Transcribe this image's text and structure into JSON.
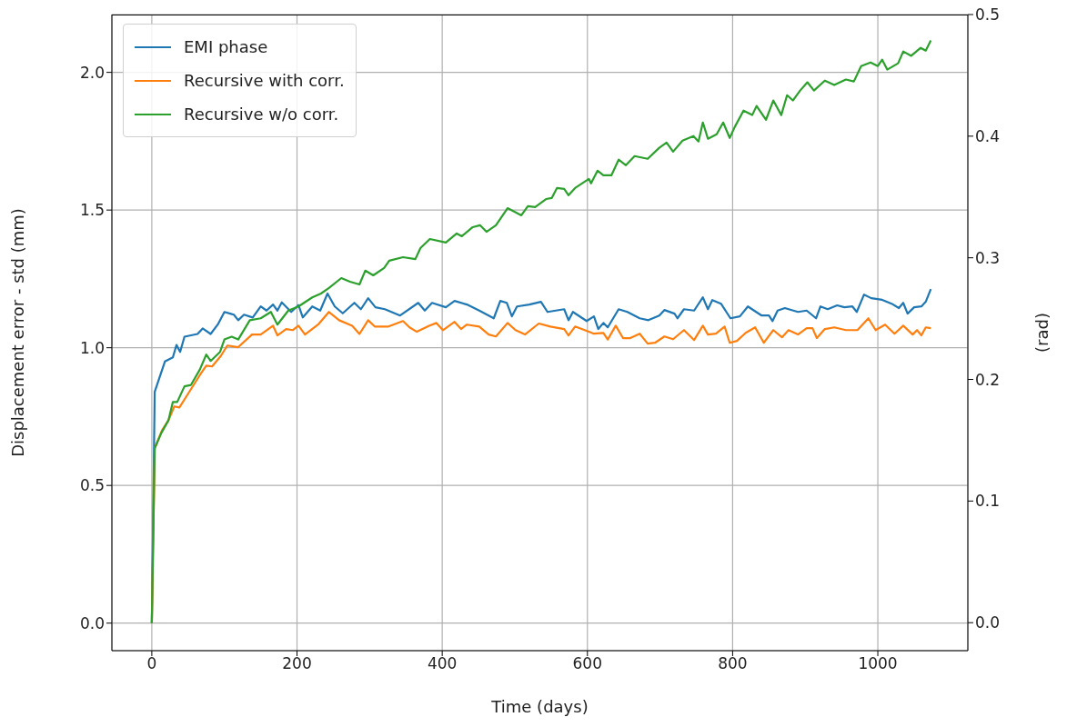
{
  "chart_data": {
    "type": "line",
    "xlabel": "Time (days)",
    "ylabel": "Displacement error - std (mm)",
    "y2label": "(rad)",
    "xlim": [
      -55,
      1124
    ],
    "xticks": [
      0,
      200,
      400,
      600,
      800,
      1000
    ],
    "ylim": [
      -0.1,
      2.21
    ],
    "yticks": [
      {
        "value": 0,
        "label": "0.0"
      },
      0.5,
      {
        "value": 1,
        "label": "1.0"
      },
      1.5,
      {
        "value": 2,
        "label": "2.0"
      }
    ],
    "y2lim": [
      -0.023,
      0.5
    ],
    "y2ticks": [
      {
        "value": 0,
        "label": "0.0"
      },
      0.1,
      0.2,
      0.3,
      0.4,
      0.5
    ],
    "grid": true,
    "legend": "top left",
    "marker": "none",
    "line_style": "solid",
    "series": [
      {
        "name": "EMI phase",
        "color": "#1f77b4",
        "x": [
          0,
          4,
          18,
          29,
          34,
          39,
          45,
          63,
          70,
          81,
          91,
          100,
          113,
          119,
          127,
          139,
          150,
          158,
          167,
          173,
          179,
          192,
          202,
          208,
          221,
          232,
          242,
          252,
          263,
          279,
          288,
          298,
          308,
          321,
          342,
          367,
          376,
          386,
          405,
          417,
          434,
          451,
          471,
          480,
          489,
          496,
          503,
          520,
          536,
          545,
          568,
          574,
          580,
          599,
          609,
          615,
          622,
          628,
          643,
          655,
          672,
          684,
          699,
          706,
          720,
          724,
          733,
          747,
          759,
          766,
          772,
          784,
          797,
          810,
          821,
          840,
          850,
          855,
          862,
          872,
          890,
          902,
          915,
          921,
          931,
          944,
          954,
          965,
          971,
          981,
          991,
          1006,
          1019,
          1029,
          1035,
          1041,
          1050,
          1060,
          1066,
          1073
        ],
        "values": [
          0,
          0.84,
          0.95,
          0.965,
          1.01,
          0.985,
          1.04,
          1.05,
          1.07,
          1.05,
          1.085,
          1.13,
          1.12,
          1.1,
          1.12,
          1.11,
          1.15,
          1.135,
          1.157,
          1.135,
          1.165,
          1.13,
          1.155,
          1.11,
          1.15,
          1.135,
          1.197,
          1.15,
          1.125,
          1.163,
          1.14,
          1.18,
          1.147,
          1.14,
          1.117,
          1.163,
          1.135,
          1.163,
          1.147,
          1.17,
          1.157,
          1.135,
          1.107,
          1.17,
          1.163,
          1.114,
          1.15,
          1.157,
          1.167,
          1.13,
          1.14,
          1.1,
          1.13,
          1.097,
          1.114,
          1.068,
          1.09,
          1.074,
          1.14,
          1.13,
          1.107,
          1.1,
          1.117,
          1.137,
          1.124,
          1.107,
          1.14,
          1.135,
          1.183,
          1.14,
          1.173,
          1.16,
          1.107,
          1.114,
          1.15,
          1.117,
          1.117,
          1.097,
          1.135,
          1.144,
          1.13,
          1.135,
          1.107,
          1.15,
          1.14,
          1.154,
          1.147,
          1.15,
          1.13,
          1.193,
          1.18,
          1.174,
          1.16,
          1.144,
          1.163,
          1.124,
          1.147,
          1.15,
          1.167,
          1.213
        ]
      },
      {
        "name": "Recursive with corr.",
        "color": "#ff7f0e",
        "x": [
          0,
          4,
          14,
          23,
          31,
          38,
          50,
          66,
          75,
          83,
          95,
          104,
          119,
          138,
          150,
          167,
          173,
          185,
          194,
          202,
          211,
          229,
          244,
          258,
          276,
          286,
          298,
          307,
          326,
          346,
          355,
          365,
          382,
          392,
          401,
          417,
          426,
          434,
          451,
          464,
          474,
          490,
          501,
          514,
          533,
          549,
          568,
          574,
          583,
          602,
          609,
          622,
          628,
          639,
          649,
          659,
          672,
          683,
          693,
          706,
          718,
          733,
          747,
          759,
          766,
          777,
          789,
          796,
          806,
          818,
          831,
          843,
          856,
          868,
          877,
          890,
          902,
          910,
          916,
          927,
          940,
          956,
          972,
          987,
          997,
          1010,
          1023,
          1035,
          1048,
          1054,
          1060,
          1066,
          1073
        ],
        "values": [
          0,
          0.635,
          0.7,
          0.737,
          0.787,
          0.783,
          0.833,
          0.9,
          0.935,
          0.932,
          0.97,
          1.008,
          1.002,
          1.048,
          1.048,
          1.08,
          1.045,
          1.068,
          1.064,
          1.08,
          1.048,
          1.084,
          1.13,
          1.1,
          1.08,
          1.05,
          1.1,
          1.077,
          1.077,
          1.097,
          1.074,
          1.058,
          1.08,
          1.09,
          1.064,
          1.094,
          1.068,
          1.084,
          1.077,
          1.048,
          1.041,
          1.09,
          1.064,
          1.048,
          1.088,
          1.077,
          1.068,
          1.045,
          1.077,
          1.058,
          1.051,
          1.054,
          1.03,
          1.08,
          1.035,
          1.035,
          1.051,
          1.015,
          1.018,
          1.041,
          1.031,
          1.064,
          1.028,
          1.08,
          1.048,
          1.051,
          1.077,
          1.018,
          1.025,
          1.054,
          1.074,
          1.018,
          1.064,
          1.038,
          1.064,
          1.048,
          1.071,
          1.071,
          1.035,
          1.068,
          1.074,
          1.064,
          1.064,
          1.107,
          1.064,
          1.084,
          1.051,
          1.08,
          1.048,
          1.064,
          1.045,
          1.074,
          1.071
        ]
      },
      {
        "name": "Recursive w/o corr.",
        "color": "#2ca02c",
        "x": [
          0,
          4,
          13,
          23,
          29,
          35,
          45,
          54,
          66,
          75,
          81,
          94,
          100,
          110,
          119,
          135,
          150,
          164,
          173,
          188,
          202,
          221,
          233,
          244,
          261,
          273,
          286,
          294,
          305,
          320,
          327,
          346,
          363,
          370,
          383,
          405,
          420,
          427,
          442,
          452,
          461,
          474,
          490,
          509,
          518,
          528,
          543,
          551,
          558,
          568,
          574,
          583,
          602,
          605,
          614,
          622,
          633,
          643,
          653,
          665,
          683,
          699,
          709,
          718,
          731,
          746,
          753,
          759,
          766,
          778,
          787,
          796,
          803,
          815,
          827,
          833,
          846,
          856,
          867,
          875,
          883,
          893,
          903,
          912,
          927,
          940,
          956,
          967,
          977,
          990,
          1000,
          1006,
          1013,
          1028,
          1035,
          1046,
          1059,
          1066,
          1073
        ],
        "values": [
          0,
          0.635,
          0.69,
          0.737,
          0.803,
          0.803,
          0.86,
          0.865,
          0.92,
          0.975,
          0.952,
          0.985,
          1.03,
          1.04,
          1.03,
          1.1,
          1.107,
          1.13,
          1.084,
          1.135,
          1.15,
          1.183,
          1.197,
          1.217,
          1.253,
          1.24,
          1.23,
          1.28,
          1.263,
          1.29,
          1.316,
          1.329,
          1.322,
          1.362,
          1.395,
          1.382,
          1.415,
          1.405,
          1.438,
          1.445,
          1.421,
          1.445,
          1.507,
          1.481,
          1.514,
          1.511,
          1.54,
          1.544,
          1.58,
          1.577,
          1.554,
          1.58,
          1.613,
          1.597,
          1.643,
          1.626,
          1.626,
          1.683,
          1.663,
          1.696,
          1.686,
          1.726,
          1.745,
          1.712,
          1.752,
          1.769,
          1.749,
          1.818,
          1.759,
          1.775,
          1.818,
          1.762,
          1.802,
          1.861,
          1.845,
          1.878,
          1.828,
          1.898,
          1.845,
          1.917,
          1.898,
          1.934,
          1.964,
          1.934,
          1.97,
          1.954,
          1.974,
          1.967,
          2.023,
          2.036,
          2.023,
          2.046,
          2.01,
          2.033,
          2.076,
          2.06,
          2.089,
          2.079,
          2.116
        ]
      }
    ]
  }
}
